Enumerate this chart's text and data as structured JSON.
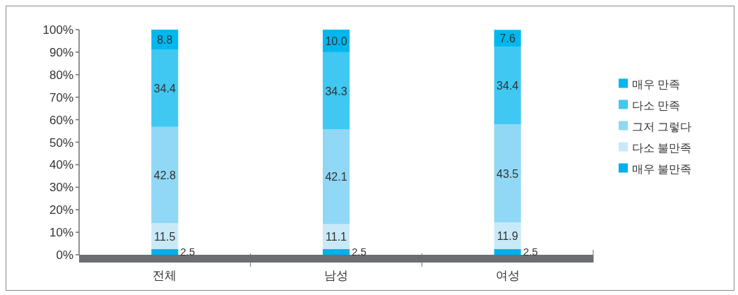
{
  "chart_data": {
    "type": "bar",
    "stacked": true,
    "categories": [
      "전체",
      "남성",
      "여성"
    ],
    "series": [
      {
        "name": "매우 불만족",
        "color": "#00b0ec",
        "values": [
          2.5,
          2.5,
          2.5
        ],
        "value_labels": [
          "2.5",
          "2.5",
          "2.5"
        ]
      },
      {
        "name": "다소 불만족",
        "color": "#c8eaf8",
        "values": [
          11.5,
          11.1,
          11.9
        ],
        "value_labels": [
          "11.5",
          "11.1",
          "11.9"
        ]
      },
      {
        "name": "그저 그렇다",
        "color": "#90d8f6",
        "values": [
          42.8,
          42.1,
          43.5
        ],
        "value_labels": [
          "42.8",
          "42.1",
          "43.5"
        ]
      },
      {
        "name": "다소 만족",
        "color": "#40c8f2",
        "values": [
          34.4,
          34.3,
          34.4
        ],
        "value_labels": [
          "34.4",
          "34.3",
          "34.4"
        ]
      },
      {
        "name": "매우 만족",
        "color": "#00b8ee",
        "values": [
          8.8,
          10.0,
          7.6
        ],
        "value_labels": [
          "8.8",
          "10.0",
          "7.6"
        ]
      }
    ],
    "ylim": [
      0,
      100
    ],
    "yticks": [
      {
        "value": 0,
        "label": "0%"
      },
      {
        "value": 10,
        "label": "10%"
      },
      {
        "value": 20,
        "label": "20%"
      },
      {
        "value": 30,
        "label": "30%"
      },
      {
        "value": 40,
        "label": "40%"
      },
      {
        "value": 50,
        "label": "50%"
      },
      {
        "value": 60,
        "label": "60%"
      },
      {
        "value": 70,
        "label": "70%"
      },
      {
        "value": 80,
        "label": "80%"
      },
      {
        "value": 90,
        "label": "90%"
      },
      {
        "value": 100,
        "label": "100%"
      }
    ],
    "legend": "right"
  }
}
